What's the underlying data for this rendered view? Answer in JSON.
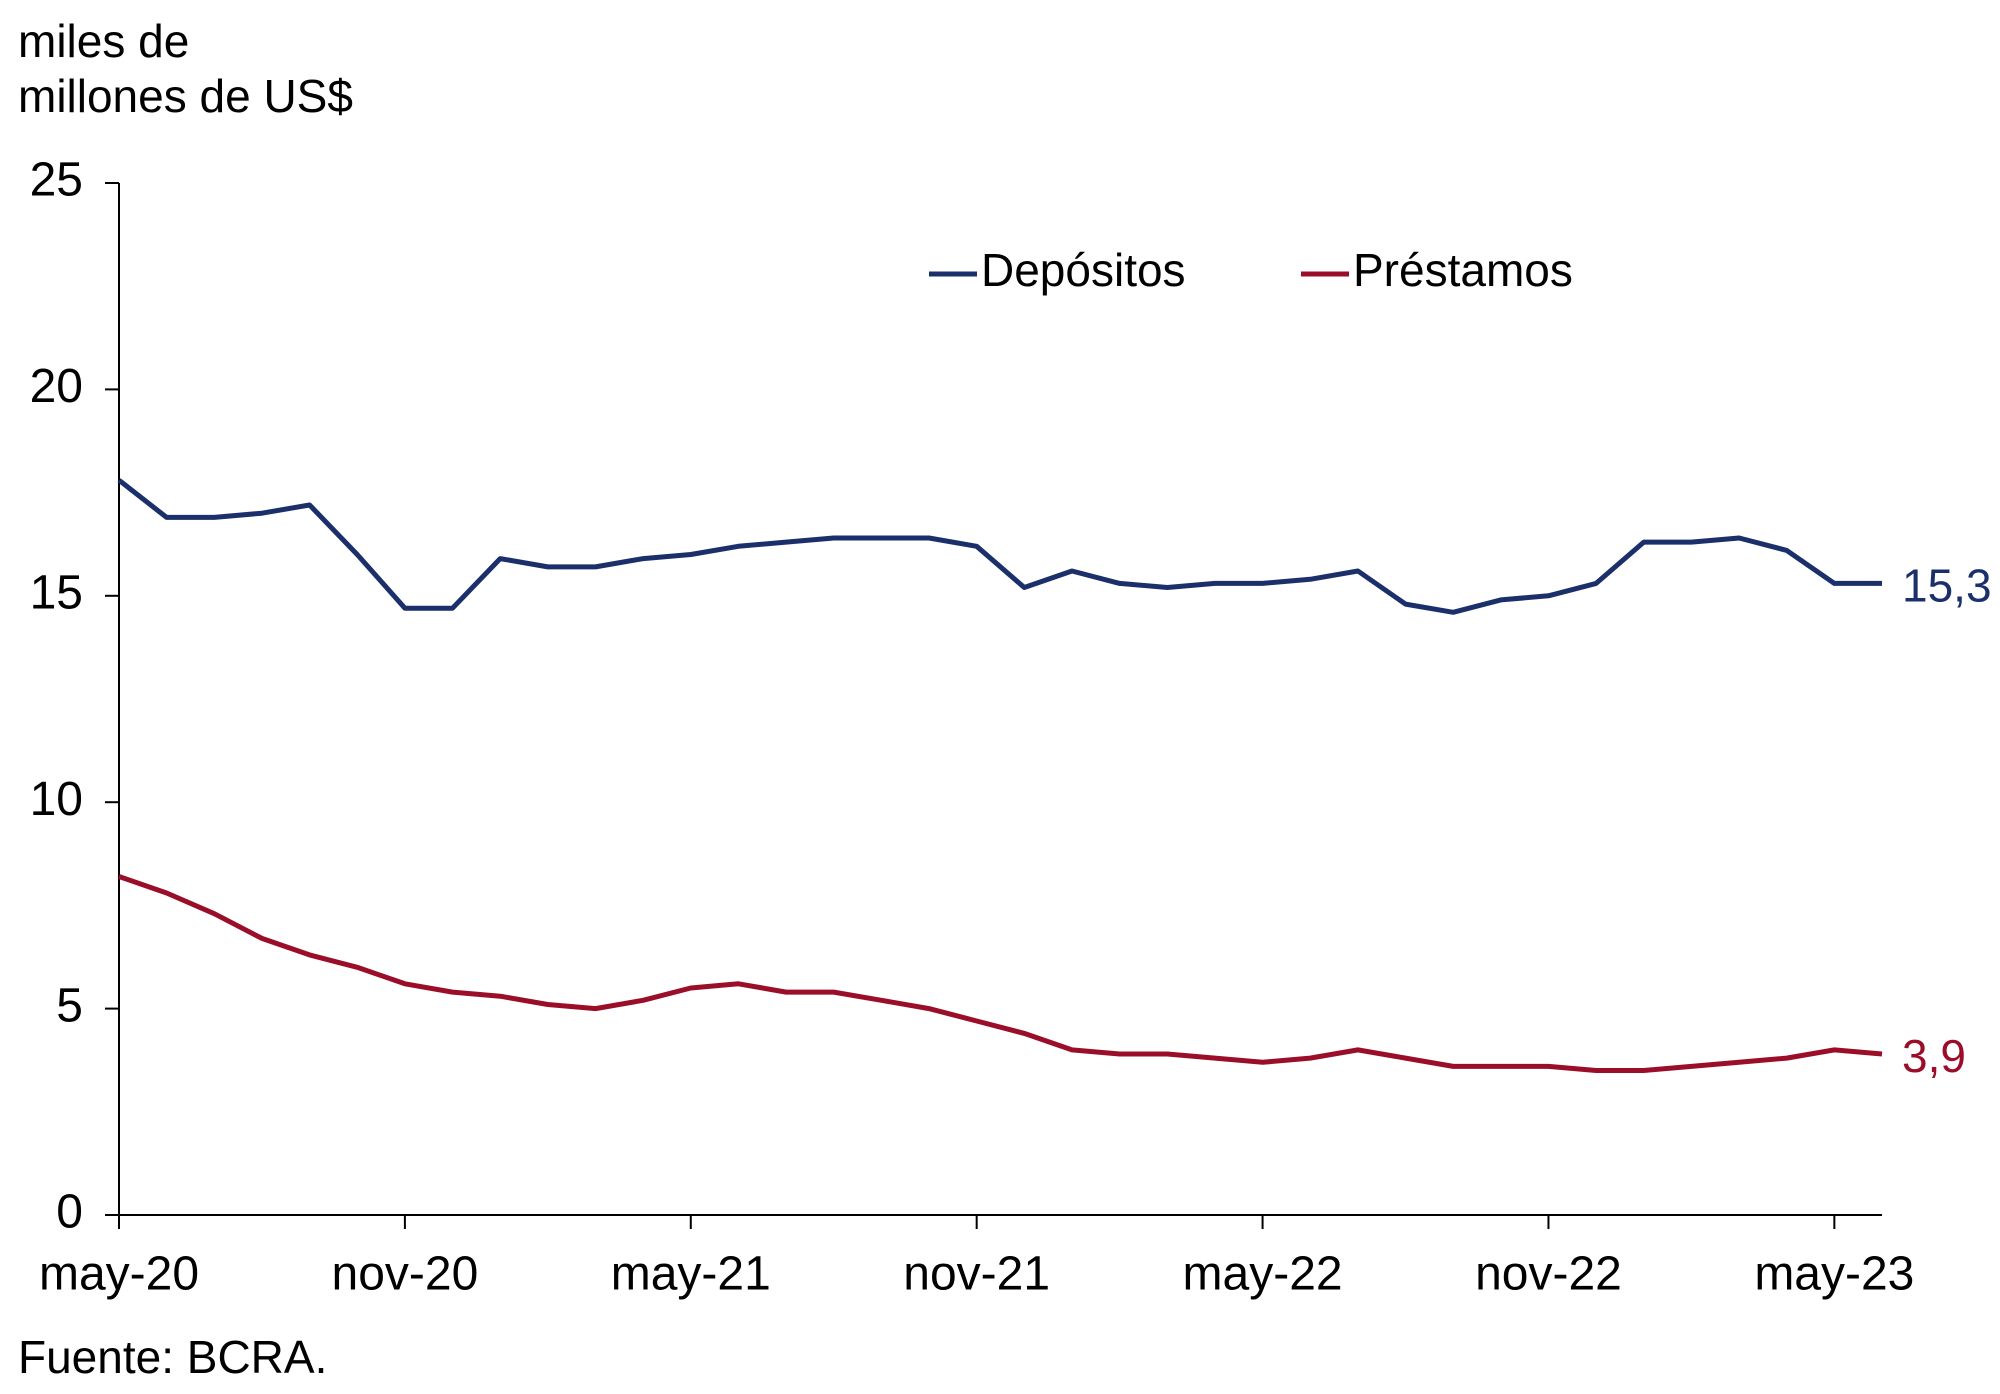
{
  "chart_data": {
    "type": "line",
    "ylabel_lines": [
      "miles de",
      "millones de US$"
    ],
    "source": "Fuente: BCRA.",
    "categories": [
      "may-20",
      null,
      null,
      null,
      null,
      null,
      "nov-20",
      null,
      null,
      null,
      null,
      null,
      "may-21",
      null,
      null,
      null,
      null,
      null,
      "nov-21",
      null,
      null,
      null,
      null,
      null,
      "may-22",
      null,
      null,
      null,
      null,
      null,
      "nov-22",
      null,
      null,
      null,
      null,
      null,
      "may-23",
      null
    ],
    "series": [
      {
        "name": "Depósitos",
        "color": "#1b2f6b",
        "values": [
          17.8,
          16.9,
          16.9,
          17.0,
          17.2,
          16.0,
          14.7,
          14.7,
          15.9,
          15.7,
          15.7,
          15.9,
          16.0,
          16.2,
          16.3,
          16.4,
          16.4,
          16.4,
          16.2,
          15.2,
          15.6,
          15.3,
          15.2,
          15.3,
          15.3,
          15.4,
          15.6,
          14.8,
          14.6,
          14.9,
          15.0,
          15.3,
          16.3,
          16.3,
          16.4,
          16.1,
          15.3,
          15.3
        ],
        "value_labels": [
          null,
          null,
          null,
          null,
          null,
          null,
          null,
          null,
          null,
          null,
          null,
          null,
          null,
          null,
          null,
          null,
          null,
          null,
          null,
          null,
          null,
          null,
          null,
          null,
          null,
          null,
          null,
          null,
          null,
          null,
          null,
          null,
          null,
          null,
          null,
          null,
          null,
          "15,3"
        ]
      },
      {
        "name": "Préstamos",
        "color": "#9b0e2a",
        "values": [
          8.2,
          7.8,
          7.3,
          6.7,
          6.3,
          6.0,
          5.6,
          5.4,
          5.3,
          5.1,
          5.0,
          5.2,
          5.5,
          5.6,
          5.4,
          5.4,
          5.2,
          5.0,
          4.7,
          4.4,
          4.0,
          3.9,
          3.9,
          3.8,
          3.7,
          3.8,
          4.0,
          3.8,
          3.6,
          3.6,
          3.6,
          3.5,
          3.5,
          3.6,
          3.7,
          3.8,
          4.0,
          3.9
        ],
        "value_labels": [
          null,
          null,
          null,
          null,
          null,
          null,
          null,
          null,
          null,
          null,
          null,
          null,
          null,
          null,
          null,
          null,
          null,
          null,
          null,
          null,
          null,
          null,
          null,
          null,
          null,
          null,
          null,
          null,
          null,
          null,
          null,
          null,
          null,
          null,
          null,
          null,
          null,
          "3,9"
        ]
      }
    ],
    "ylim": [
      0,
      25
    ],
    "yticks": [
      0,
      5,
      10,
      15,
      20,
      25
    ],
    "grid": false,
    "legend": "top"
  }
}
